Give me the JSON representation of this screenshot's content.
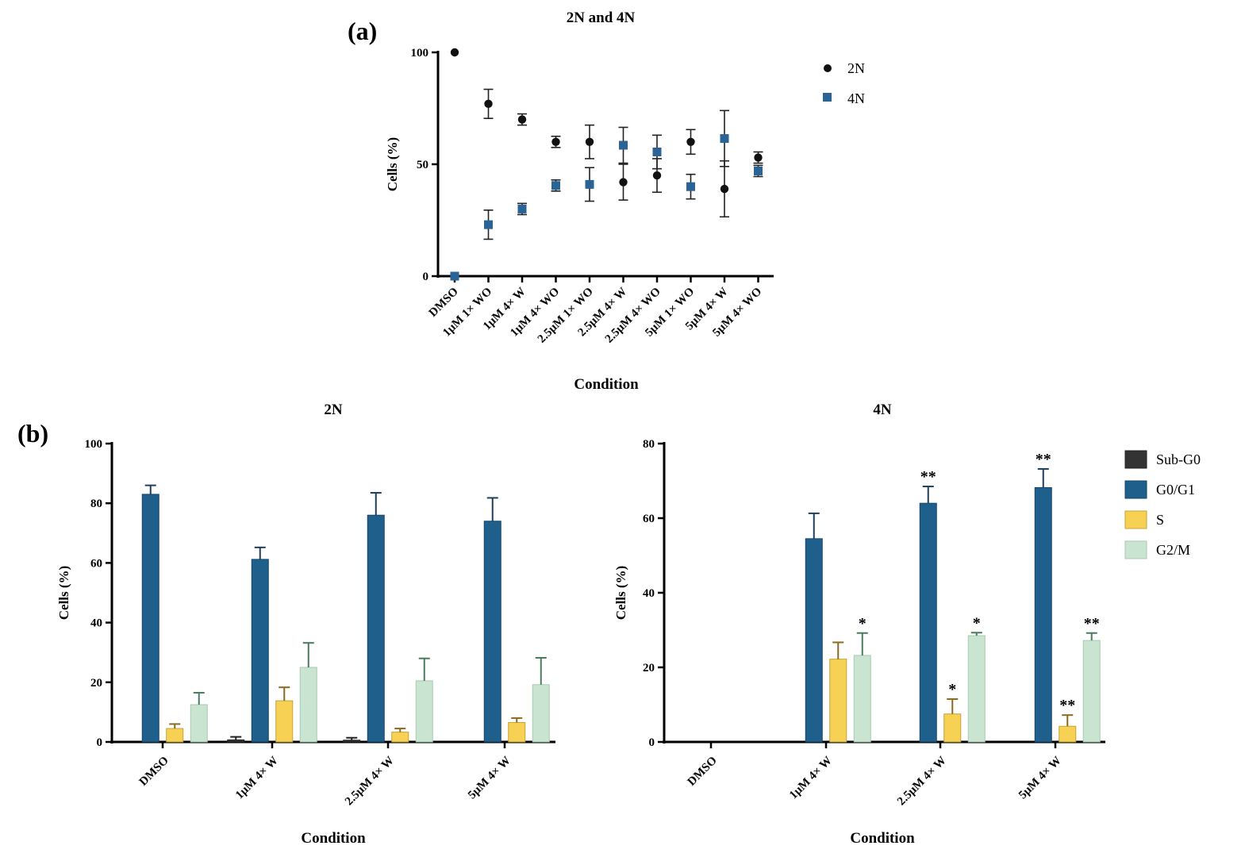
{
  "panel_labels": {
    "a": "(a)",
    "b": "(b)"
  },
  "colors": {
    "axis": "#000000",
    "dot_2n": "#111111",
    "square_4n": "#2a6496",
    "sub_g0": "#333333",
    "g0g1": "#1f5f8b",
    "s": "#f7d154",
    "g2m": "#c9e4d0",
    "err_g0g1": "#1f3f5a",
    "err_s": "#8a6a1f",
    "err_g2m": "#4a7a5e"
  },
  "chart_data": [
    {
      "id": "a",
      "type": "scatter",
      "title": "2N and 4N",
      "xlabel": "Condition",
      "ylabel": "Cells (%)",
      "ylim": [
        0,
        100
      ],
      "yticks": [
        "0",
        "50",
        "100"
      ],
      "categories": [
        "DMSO",
        "1µM 1× WO",
        "1µM 4× W",
        "1µM 4× WO",
        "2.5µM 1× WO",
        "2.5µM 4× W",
        "2.5µM 4× WO",
        "5µM 1× WO",
        "5µM 4× W",
        "5µM 4× WO"
      ],
      "legend": [
        "2N",
        "4N"
      ],
      "series": [
        {
          "name": "2N",
          "values": [
            100,
            77,
            70,
            60,
            60,
            42,
            45,
            60,
            39,
            53
          ],
          "errors": [
            0,
            6.5,
            2.5,
            2.5,
            7.5,
            8,
            7.5,
            5.5,
            12.5,
            2.5
          ]
        },
        {
          "name": "4N",
          "values": [
            0,
            23,
            30,
            40.5,
            41,
            58.5,
            55.5,
            40,
            61.5,
            47
          ],
          "errors": [
            0,
            6.5,
            2.5,
            2.5,
            7.5,
            8,
            7.5,
            5.5,
            12.5,
            2.5
          ]
        }
      ]
    },
    {
      "id": "b1",
      "type": "bar",
      "title": "2N",
      "xlabel": "Condition",
      "ylabel": "Cells (%)",
      "ylim": [
        0,
        100
      ],
      "yticks": [
        "0",
        "20",
        "40",
        "60",
        "80",
        "100"
      ],
      "categories": [
        "DMSO",
        "1µM 4× W",
        "2.5µM 4× W",
        "5µM 4× W"
      ],
      "series": [
        {
          "name": "Sub-G0",
          "values": [
            0,
            0.7,
            0.6,
            0
          ],
          "errors": [
            0,
            1,
            0.8,
            0
          ]
        },
        {
          "name": "G0/G1",
          "values": [
            83,
            61.2,
            76,
            74
          ],
          "errors": [
            3,
            4,
            7.5,
            7.8
          ]
        },
        {
          "name": "S",
          "values": [
            4.5,
            13.8,
            3.3,
            6.5
          ],
          "errors": [
            1.5,
            4.5,
            1.2,
            1.5
          ]
        },
        {
          "name": "G2/M",
          "values": [
            12.5,
            25,
            20.5,
            19.2
          ],
          "errors": [
            4,
            8.2,
            7.5,
            9
          ]
        }
      ]
    },
    {
      "id": "b2",
      "type": "bar",
      "title": "4N",
      "xlabel": "Condition",
      "ylabel": "Cells (%)",
      "ylim": [
        0,
        80
      ],
      "yticks": [
        "0",
        "20",
        "40",
        "60",
        "80"
      ],
      "categories": [
        "DMSO",
        "1µM 4× W",
        "2.5µM 4× W",
        "5µM 4× W"
      ],
      "legend": [
        "Sub-G0",
        "G0/G1",
        "S",
        "G2/M"
      ],
      "series": [
        {
          "name": "Sub-G0",
          "values": [
            0,
            0,
            0,
            0
          ],
          "errors": [
            0,
            0,
            0,
            0
          ],
          "annotations": [
            "",
            "",
            "",
            ""
          ]
        },
        {
          "name": "G0/G1",
          "values": [
            0,
            54.5,
            64,
            68.2
          ],
          "errors": [
            0,
            6.8,
            4.5,
            5
          ],
          "annotations": [
            "",
            "",
            "**",
            "**"
          ]
        },
        {
          "name": "S",
          "values": [
            0,
            22.2,
            7.5,
            4.2
          ],
          "errors": [
            0,
            4.5,
            4,
            3
          ],
          "annotations": [
            "",
            "",
            "*",
            "**"
          ]
        },
        {
          "name": "G2/M",
          "values": [
            0,
            23.2,
            28.5,
            27.2
          ],
          "errors": [
            0,
            6,
            0.8,
            2
          ],
          "annotations": [
            "",
            "*",
            "*",
            "**"
          ]
        }
      ]
    }
  ]
}
